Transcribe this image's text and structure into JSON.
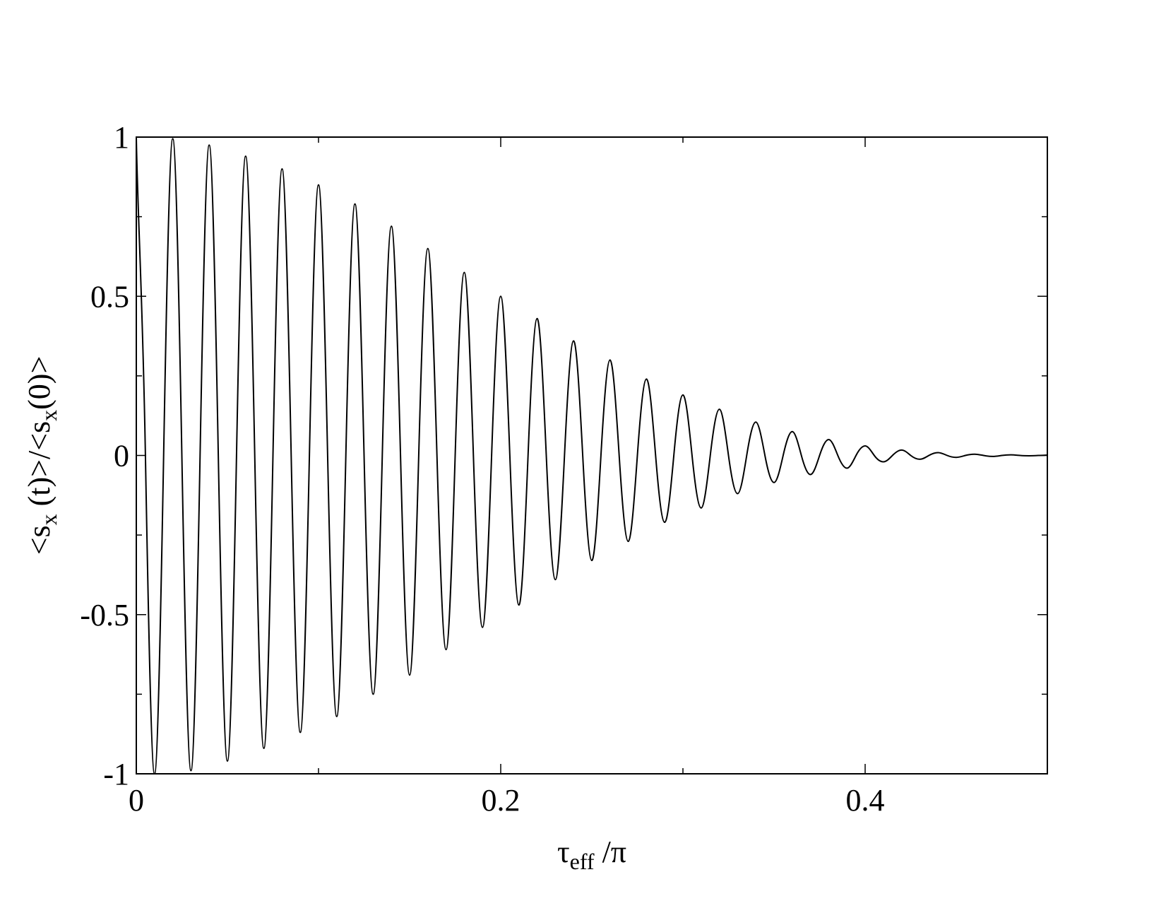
{
  "chart_data": {
    "type": "line",
    "xlabel": [
      {
        "text": "τ"
      },
      {
        "text": "eff",
        "sub": true
      },
      {
        "text": " /π"
      }
    ],
    "ylabel": [
      {
        "text": "<s"
      },
      {
        "text": "x",
        "sub": true
      },
      {
        "text": " (t)>/<s"
      },
      {
        "text": "x",
        "sub": true
      },
      {
        "text": "(0)>"
      }
    ],
    "xlim": [
      0,
      0.5
    ],
    "xticks": [
      0,
      0.2,
      0.4
    ],
    "xminorticks": [
      0.1,
      0.3,
      0.5
    ],
    "ylim": [
      -1,
      1
    ],
    "yticks": [
      -1,
      -0.5,
      0,
      0.5,
      1
    ],
    "yminorticks": [
      -0.75,
      -0.25,
      0.25,
      0.75
    ],
    "color": "#000000",
    "x": [
      0,
      0.005,
      0.01,
      0.015,
      0.02,
      0.025,
      0.03,
      0.035,
      0.04,
      0.045,
      0.05,
      0.055,
      0.06,
      0.065,
      0.07,
      0.075,
      0.08,
      0.085,
      0.09,
      0.095,
      0.1,
      0.105,
      0.11,
      0.115,
      0.12,
      0.125,
      0.13,
      0.135,
      0.14,
      0.145,
      0.15,
      0.155,
      0.16,
      0.165,
      0.17,
      0.175,
      0.18,
      0.185,
      0.19,
      0.195,
      0.2,
      0.205,
      0.21,
      0.215,
      0.22,
      0.225,
      0.23,
      0.235,
      0.24,
      0.245,
      0.25,
      0.255,
      0.26,
      0.265,
      0.27,
      0.275,
      0.28,
      0.285,
      0.29,
      0.295,
      0.3,
      0.305,
      0.31,
      0.315,
      0.32,
      0.325,
      0.33,
      0.335,
      0.34,
      0.345,
      0.35,
      0.355,
      0.36,
      0.365,
      0.37,
      0.375,
      0.38,
      0.385,
      0.39,
      0.395,
      0.4,
      0.405,
      0.41,
      0.415,
      0.42,
      0.425,
      0.43,
      0.435,
      0.44,
      0.445,
      0.45,
      0.455,
      0.46,
      0.465,
      0.47,
      0.475,
      0.48,
      0.485,
      0.49,
      0.495,
      0.5
    ],
    "values": [
      1,
      0,
      -1,
      0,
      0.995,
      0,
      -0.99,
      0,
      0.975,
      0,
      -0.96,
      0,
      0.94,
      0,
      -0.92,
      0,
      0.9,
      0,
      -0.87,
      0,
      0.85,
      0,
      -0.82,
      0,
      0.79,
      0,
      -0.75,
      0,
      0.72,
      0,
      -0.69,
      0,
      0.65,
      0,
      -0.61,
      0,
      0.575,
      0,
      -0.54,
      0,
      0.5,
      0,
      -0.47,
      0,
      0.43,
      0,
      -0.39,
      0,
      0.36,
      0,
      -0.33,
      0,
      0.3,
      0,
      -0.27,
      0,
      0.24,
      0,
      -0.21,
      0,
      0.19,
      0,
      -0.165,
      0,
      0.145,
      0,
      -0.12,
      0,
      0.105,
      0,
      -0.085,
      0,
      0.075,
      0,
      -0.06,
      0,
      0.05,
      0,
      -0.04,
      0,
      0.03,
      0,
      -0.02,
      0,
      0.017,
      0,
      -0.012,
      0,
      0.009,
      0,
      -0.006,
      0,
      0.004,
      0,
      -0.003,
      0,
      0.002,
      0,
      -0.001,
      0,
      0.001
    ]
  }
}
